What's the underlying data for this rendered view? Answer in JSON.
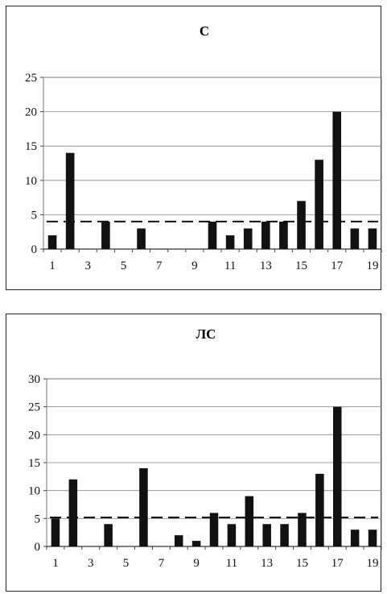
{
  "chart_data": [
    {
      "type": "bar",
      "title": "С",
      "xlabel": "",
      "ylabel": "",
      "categories": [
        1,
        2,
        3,
        4,
        5,
        6,
        7,
        8,
        9,
        10,
        11,
        12,
        13,
        14,
        15,
        16,
        17,
        18,
        19
      ],
      "x_tick_labels": [
        "1",
        "3",
        "5",
        "7",
        "9",
        "11",
        "13",
        "15",
        "17",
        "19"
      ],
      "y_ticks": [
        0,
        5,
        10,
        15,
        20,
        25
      ],
      "ylim": [
        0,
        25
      ],
      "values": [
        2,
        14,
        0,
        4,
        0,
        3,
        0,
        0,
        0,
        4,
        2,
        3,
        4,
        4,
        7,
        13,
        20,
        3,
        3
      ],
      "threshold": 4,
      "grid": true,
      "bar_color": "#111111"
    },
    {
      "type": "bar",
      "title": "ЛС",
      "xlabel": "",
      "ylabel": "",
      "categories": [
        1,
        2,
        3,
        4,
        5,
        6,
        7,
        8,
        9,
        10,
        11,
        12,
        13,
        14,
        15,
        16,
        17,
        18,
        19
      ],
      "x_tick_labels": [
        "1",
        "3",
        "5",
        "7",
        "9",
        "11",
        "13",
        "15",
        "17",
        "19"
      ],
      "y_ticks": [
        0,
        5,
        10,
        15,
        20,
        25,
        30
      ],
      "ylim": [
        0,
        30
      ],
      "values": [
        5,
        12,
        0,
        4,
        0,
        14,
        0,
        2,
        1,
        6,
        4,
        9,
        4,
        4,
        6,
        13,
        25,
        3,
        3
      ],
      "threshold": 5.2,
      "grid": true,
      "bar_color": "#111111"
    }
  ]
}
